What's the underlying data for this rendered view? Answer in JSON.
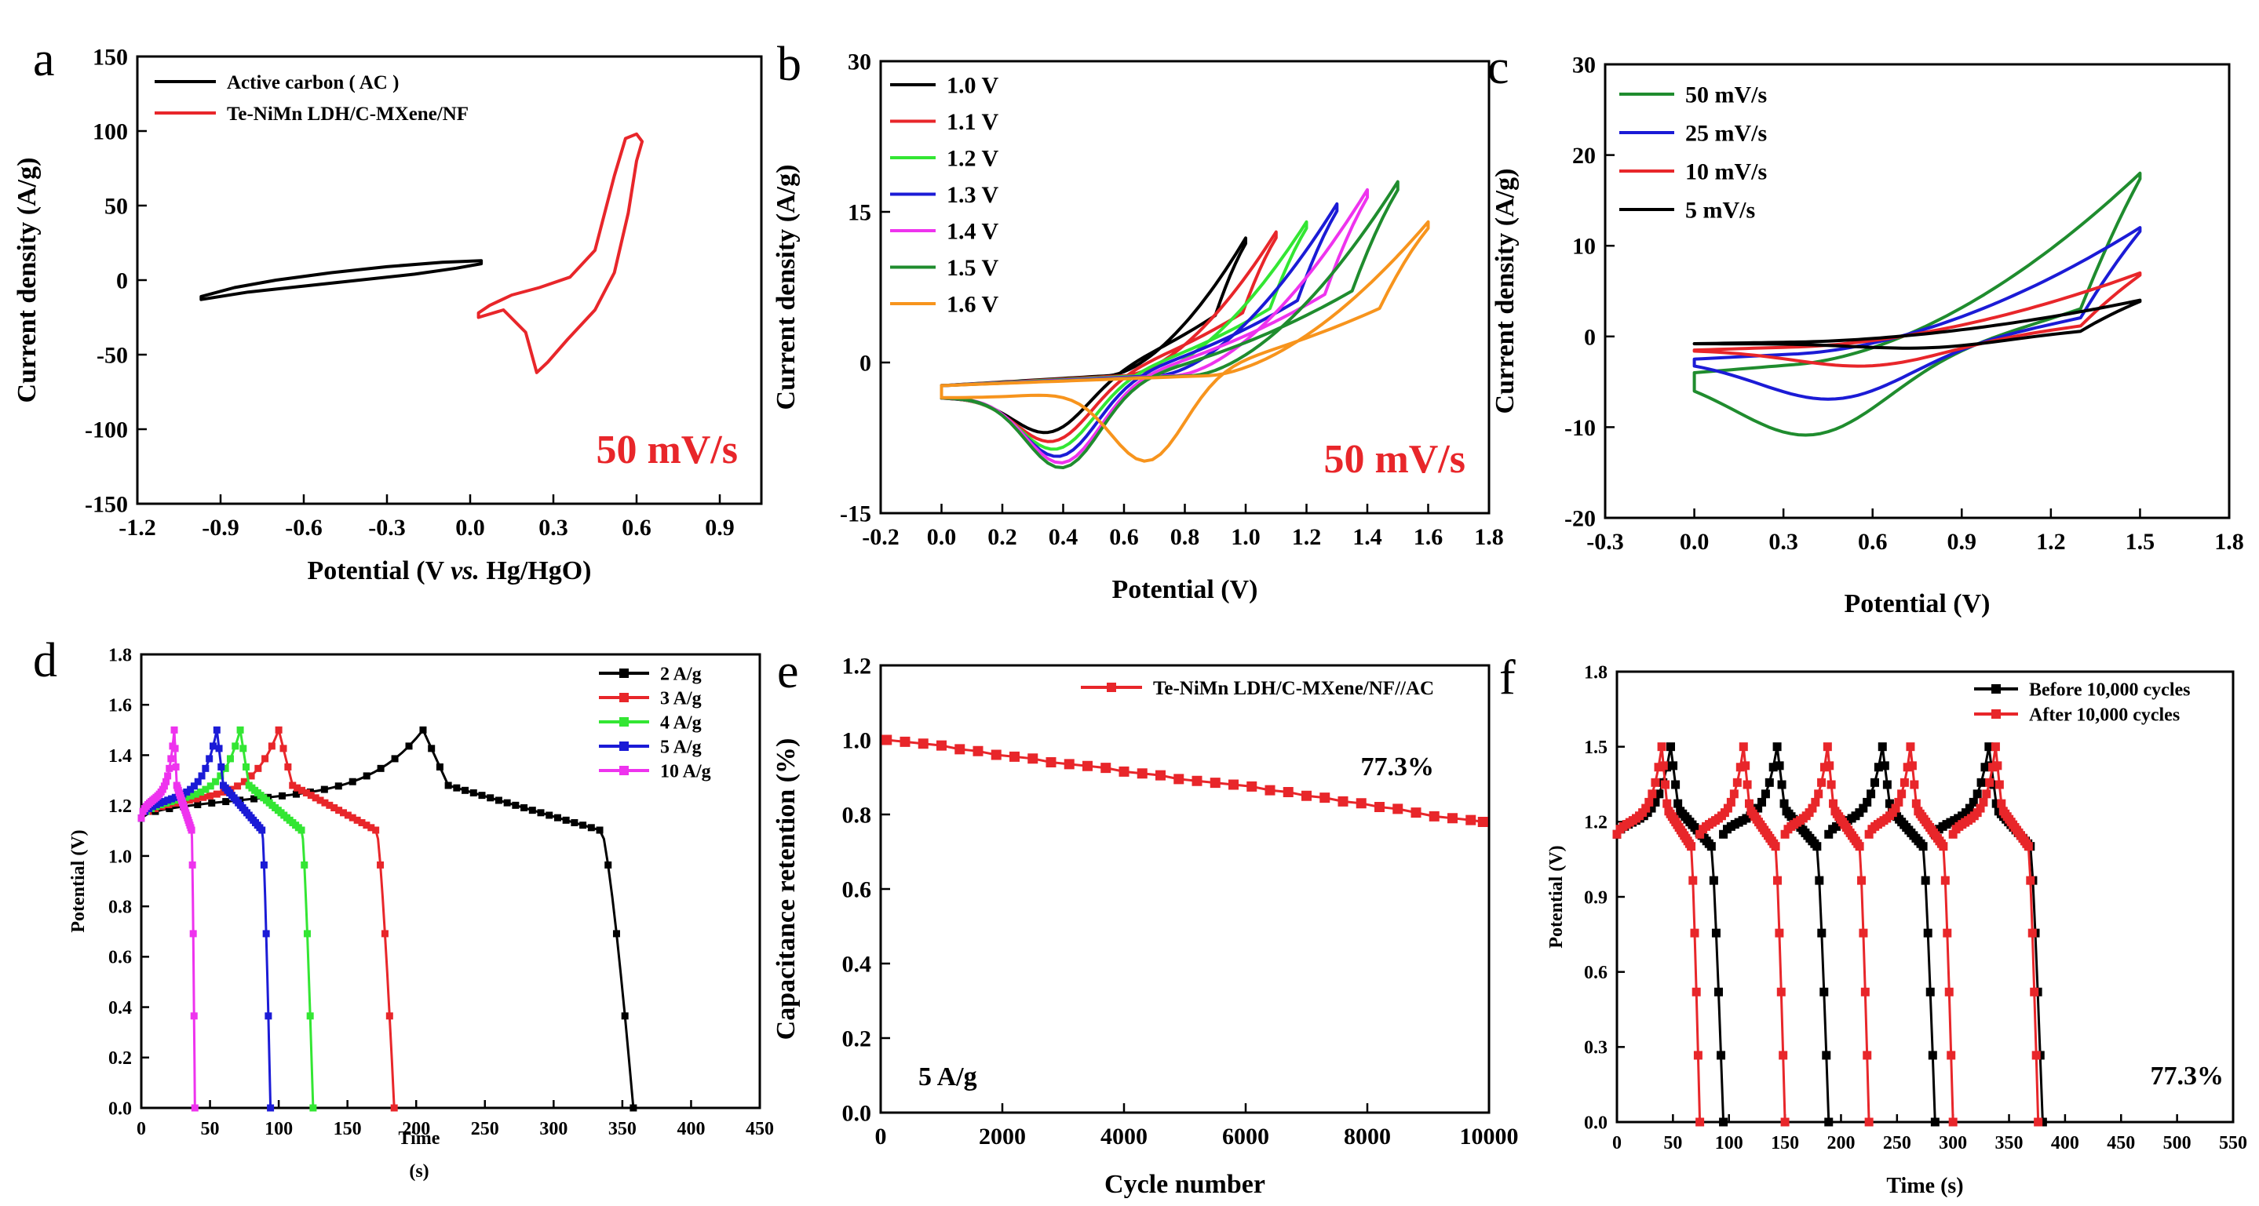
{
  "chart_data": [
    {
      "panel": "a",
      "type": "line",
      "xlabel": "Potential (V vs. Hg/HgO)",
      "xlabel_parts": [
        "Potential (V ",
        "vs.",
        " Hg/HgO)"
      ],
      "ylabel": "Current density (A/g)",
      "xlim": [
        -1.2,
        1.05
      ],
      "ylim": [
        -150,
        150
      ],
      "xticks": [
        -1.2,
        -0.9,
        -0.6,
        -0.3,
        0.0,
        0.3,
        0.6,
        0.9
      ],
      "xtick_labels": [
        "-1.2",
        "-0.9",
        "-0.6",
        "-0.3",
        "0.0",
        "0.3",
        "0.6",
        "0.9"
      ],
      "yticks": [
        -150,
        -100,
        -50,
        0,
        50,
        100,
        150
      ],
      "ytick_labels": [
        "-150",
        "-100",
        "-50",
        "0",
        "50",
        "100",
        "150"
      ],
      "legend_position": "top-left",
      "annotations": [
        {
          "text": "50 mV/s",
          "color": "#e8262a",
          "position": "bottom-right"
        }
      ],
      "series": [
        {
          "name": "Active carbon ( AC )",
          "color": "#000000",
          "closed": true,
          "points": [
            [
              -0.97,
              -13
            ],
            [
              -0.8,
              -8
            ],
            [
              -0.6,
              -4
            ],
            [
              -0.4,
              0
            ],
            [
              -0.2,
              4
            ],
            [
              -0.05,
              8
            ],
            [
              0.04,
              11
            ],
            [
              0.04,
              13
            ],
            [
              -0.1,
              12
            ],
            [
              -0.3,
              9
            ],
            [
              -0.5,
              5
            ],
            [
              -0.7,
              0
            ],
            [
              -0.85,
              -5
            ],
            [
              -0.97,
              -11
            ]
          ]
        },
        {
          "name": "Te-NiMn LDH/C-MXene/NF",
          "color": "#e8262a",
          "closed": true,
          "points": [
            [
              0.03,
              -25
            ],
            [
              0.12,
              -20
            ],
            [
              0.2,
              -35
            ],
            [
              0.24,
              -62
            ],
            [
              0.28,
              -55
            ],
            [
              0.35,
              -40
            ],
            [
              0.45,
              -20
            ],
            [
              0.52,
              5
            ],
            [
              0.57,
              45
            ],
            [
              0.6,
              80
            ],
            [
              0.62,
              93
            ],
            [
              0.6,
              98
            ],
            [
              0.56,
              95
            ],
            [
              0.52,
              70
            ],
            [
              0.45,
              20
            ],
            [
              0.36,
              2
            ],
            [
              0.25,
              -5
            ],
            [
              0.15,
              -10
            ],
            [
              0.07,
              -17
            ],
            [
              0.03,
              -22
            ]
          ]
        }
      ]
    },
    {
      "panel": "b",
      "type": "line",
      "xlabel": "Potential  (V)",
      "ylabel": "Current density (A/g)",
      "xlim": [
        -0.2,
        1.8
      ],
      "ylim": [
        -15,
        30
      ],
      "xticks": [
        -0.2,
        0.0,
        0.2,
        0.4,
        0.6,
        0.8,
        1.0,
        1.2,
        1.4,
        1.6,
        1.8
      ],
      "xtick_labels": [
        "-0.2",
        "0.0",
        "0.2",
        "0.4",
        "0.6",
        "0.8",
        "1.0",
        "1.2",
        "1.4",
        "1.6",
        "1.8"
      ],
      "yticks": [
        -15,
        0,
        15,
        30
      ],
      "ytick_labels": [
        "-15",
        "0",
        "15",
        "30"
      ],
      "legend_position": "top-left",
      "annotations": [
        {
          "text": "50 mV/s",
          "color": "#e8262a",
          "position": "bottom-right"
        }
      ],
      "series": [
        {
          "name": "1.0 V",
          "color": "#000000",
          "vmax": 1.0,
          "ipeak": 12.4,
          "cpos": 0.36,
          "cval": -8.0
        },
        {
          "name": "1.1 V",
          "color": "#e8262a",
          "vmax": 1.1,
          "ipeak": 13.0,
          "cpos": 0.37,
          "cval": -8.8
        },
        {
          "name": "1.2 V",
          "color": "#33e633",
          "vmax": 1.2,
          "ipeak": 14.0,
          "cpos": 0.38,
          "cval": -9.5
        },
        {
          "name": "1.3 V",
          "color": "#1b1bd6",
          "vmax": 1.3,
          "ipeak": 15.8,
          "cpos": 0.39,
          "cval": -10.2
        },
        {
          "name": "1.4 V",
          "color": "#ee33ee",
          "vmax": 1.4,
          "ipeak": 17.2,
          "cpos": 0.4,
          "cval": -10.8
        },
        {
          "name": "1.5 V",
          "color": "#1f8c2e",
          "vmax": 1.5,
          "ipeak": 18.0,
          "cpos": 0.4,
          "cval": -11.2
        },
        {
          "name": "1.6 V",
          "color": "#f7941d",
          "vmax": 1.6,
          "ipeak": 14.0,
          "cpos": 0.68,
          "cval": -11.5
        }
      ]
    },
    {
      "panel": "c",
      "type": "line",
      "xlabel": "Potential  (V)",
      "ylabel": "Current density (A/g)",
      "xlim": [
        -0.3,
        1.8
      ],
      "ylim": [
        -20,
        30
      ],
      "xticks": [
        -0.3,
        0.0,
        0.3,
        0.6,
        0.9,
        1.2,
        1.5,
        1.8
      ],
      "xtick_labels": [
        "-0.3",
        "0.0",
        "0.3",
        "0.6",
        "0.9",
        "1.2",
        "1.5",
        "1.8"
      ],
      "yticks": [
        -20,
        -10,
        0,
        10,
        20,
        30
      ],
      "ytick_labels": [
        "-20",
        "-10",
        "0",
        "10",
        "20",
        "30"
      ],
      "legend_position": "top-left",
      "series": [
        {
          "name": "50 mV/s",
          "color": "#1f8c2e",
          "ipeak": 18.0,
          "istart": -4.0,
          "cpos": 0.4,
          "cval": -11.5
        },
        {
          "name": "25 mV/s",
          "color": "#1b1bd6",
          "ipeak": 12.0,
          "istart": -2.5,
          "cpos": 0.48,
          "cval": -7.5
        },
        {
          "name": "10 mV/s",
          "color": "#e8262a",
          "ipeak": 7.0,
          "istart": -1.5,
          "cpos": 0.6,
          "cval": -3.8
        },
        {
          "name": "5 mV/s",
          "color": "#000000",
          "ipeak": 4.0,
          "istart": -0.8,
          "cpos": 0.8,
          "cval": -1.8
        }
      ]
    },
    {
      "panel": "d",
      "type": "scatter",
      "xlabel": "Time",
      "xlabel_unit": "(s)",
      "ylabel": "Potential (V)",
      "xlim": [
        0,
        450
      ],
      "ylim": [
        0,
        1.8
      ],
      "xticks": [
        0,
        50,
        100,
        150,
        200,
        250,
        300,
        350,
        400,
        450
      ],
      "xtick_labels": [
        "0",
        "50",
        "100",
        "150",
        "200",
        "250",
        "300",
        "350",
        "400",
        "450"
      ],
      "yticks": [
        0,
        0.2,
        0.4,
        0.6,
        0.8,
        1.0,
        1.2,
        1.4,
        1.6,
        1.8
      ],
      "ytick_labels": [
        "0.0",
        "0.2",
        "0.4",
        "0.6",
        "0.8",
        "1.0",
        "1.2",
        "1.4",
        "1.6",
        "1.8"
      ],
      "legend_position": "top-right",
      "series": [
        {
          "name": "2 A/g",
          "color": "#000000",
          "tc": 205,
          "td": 358
        },
        {
          "name": "3 A/g",
          "color": "#e8262a",
          "tc": 100,
          "td": 184
        },
        {
          "name": "4 A/g",
          "color": "#33e633",
          "tc": 72,
          "td": 125
        },
        {
          "name": "5 A/g",
          "color": "#1b1bd6",
          "tc": 55,
          "td": 94
        },
        {
          "name": "10 A/g",
          "color": "#ee33ee",
          "tc": 24,
          "td": 39
        }
      ]
    },
    {
      "panel": "e",
      "type": "scatter",
      "xlabel": "Cycle number",
      "ylabel": "Capacitance retention (%)",
      "xlim": [
        0,
        10000
      ],
      "ylim": [
        0,
        1.2
      ],
      "xticks": [
        0,
        2000,
        4000,
        6000,
        8000,
        10000
      ],
      "xtick_labels": [
        "0",
        "2000",
        "4000",
        "6000",
        "8000",
        "10000"
      ],
      "yticks": [
        0,
        0.2,
        0.4,
        0.6,
        0.8,
        1.0,
        1.2
      ],
      "ytick_labels": [
        "0.0",
        "0.2",
        "0.4",
        "0.6",
        "0.8",
        "1.0",
        "1.2"
      ],
      "legend_position": "top-right",
      "annotations": [
        {
          "text": "77.3%",
          "position": "upper-right"
        },
        {
          "text": "5 A/g",
          "position": "bottom-left"
        }
      ],
      "series": [
        {
          "name": "Te-NiMn LDH/C-MXene/NF//AC",
          "color": "#e8262a",
          "x": [
            100,
            400,
            700,
            1000,
            1300,
            1600,
            1900,
            2200,
            2500,
            2800,
            3100,
            3400,
            3700,
            4000,
            4300,
            4600,
            4900,
            5200,
            5500,
            5800,
            6100,
            6400,
            6700,
            7000,
            7300,
            7600,
            7900,
            8200,
            8500,
            8800,
            9100,
            9400,
            9700,
            9900
          ],
          "y": [
            1.0,
            0.995,
            0.99,
            0.985,
            0.975,
            0.97,
            0.96,
            0.955,
            0.95,
            0.94,
            0.935,
            0.93,
            0.925,
            0.915,
            0.91,
            0.905,
            0.895,
            0.89,
            0.885,
            0.88,
            0.875,
            0.865,
            0.86,
            0.85,
            0.845,
            0.835,
            0.83,
            0.82,
            0.815,
            0.805,
            0.795,
            0.79,
            0.785,
            0.78
          ]
        }
      ]
    },
    {
      "panel": "f",
      "type": "scatter",
      "xlabel": "Time (s)",
      "ylabel": "Potential (V)",
      "xlim": [
        0,
        550
      ],
      "ylim": [
        0,
        1.8
      ],
      "xticks": [
        0,
        50,
        100,
        150,
        200,
        250,
        300,
        350,
        400,
        450,
        500,
        550
      ],
      "xtick_labels": [
        "0",
        "50",
        "100",
        "150",
        "200",
        "250",
        "300",
        "350",
        "400",
        "450",
        "500",
        "550"
      ],
      "yticks": [
        0,
        0.3,
        0.6,
        0.9,
        1.2,
        1.5,
        1.8
      ],
      "ytick_labels": [
        "0.0",
        "0.3",
        "0.6",
        "0.9",
        "1.2",
        "1.5",
        "1.8"
      ],
      "legend_position": "top-right",
      "annotations": [
        {
          "text": "77.3%",
          "position": "bottom-right"
        }
      ],
      "series": [
        {
          "name": "Before 10,000 cycles",
          "color": "#000000",
          "cycles": [
            [
              0,
              48,
              95
            ],
            [
              95,
              143,
              189
            ],
            [
              189,
              237,
              284
            ],
            [
              284,
              332,
              380
            ]
          ]
        },
        {
          "name": "After 10,000 cycles",
          "color": "#e8262a",
          "cycles": [
            [
              0,
              40,
              74
            ],
            [
              74,
              113,
              150
            ],
            [
              150,
              188,
              225
            ],
            [
              225,
              262,
              300
            ],
            [
              300,
              338,
              376
            ]
          ]
        }
      ]
    }
  ]
}
